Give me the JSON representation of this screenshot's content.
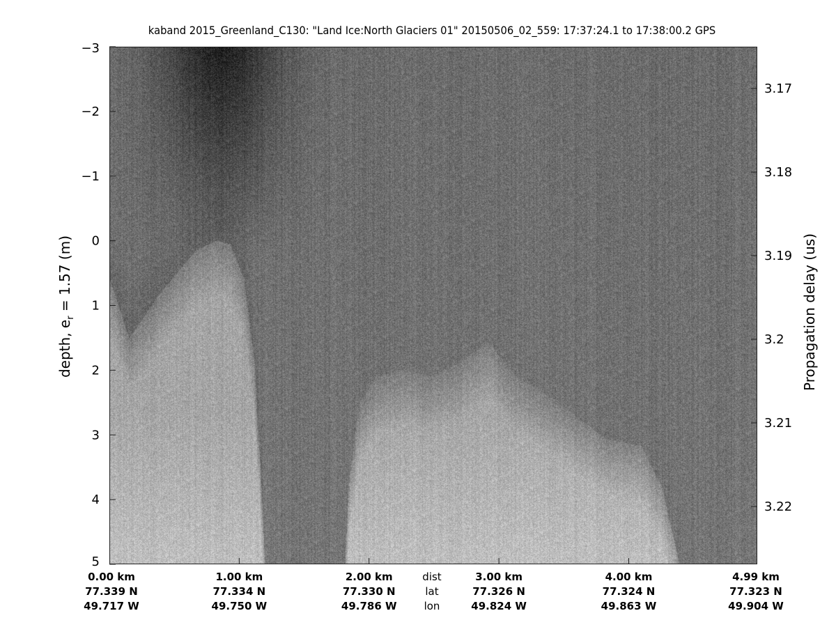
{
  "chart_data": {
    "type": "heatmap",
    "title": "kaband 2015_Greenland_C130: \"Land Ice:North Glaciers 01\"  20150506_02_559: 17:37:24.1 to 17:38:00.2 GPS",
    "colormap": "gray",
    "ylabel_left": "depth, e",
    "ylabel_left_sub": "r",
    "ylabel_left_suffix": " = 1.57 (m)",
    "ylabel_right": "Propagation delay (us)",
    "ylim_left": [
      -3,
      5
    ],
    "yticks_left": [
      "-3",
      "-2",
      "-1",
      "0",
      "1",
      "2",
      "3",
      "4",
      "5"
    ],
    "yticks_right": [
      "3.17",
      "3.18",
      "3.19",
      "3.2",
      "3.21",
      "3.22"
    ],
    "xlim_km": [
      0,
      4.99
    ],
    "x_rows": {
      "dist": [
        "0.00 km",
        "1.00 km",
        "2.00 km",
        "3.00 km",
        "4.00 km",
        "4.99 km"
      ],
      "lat": [
        "77.339 N",
        "77.334 N",
        "77.330 N",
        "77.326 N",
        "77.324 N",
        "77.323 N"
      ],
      "lon": [
        "49.717 W",
        "49.750 W",
        "49.786 W",
        "49.824 W",
        "49.863 W",
        "49.904 W"
      ]
    },
    "row_labels": [
      "dist",
      "lat",
      "lon"
    ],
    "grid": false
  }
}
